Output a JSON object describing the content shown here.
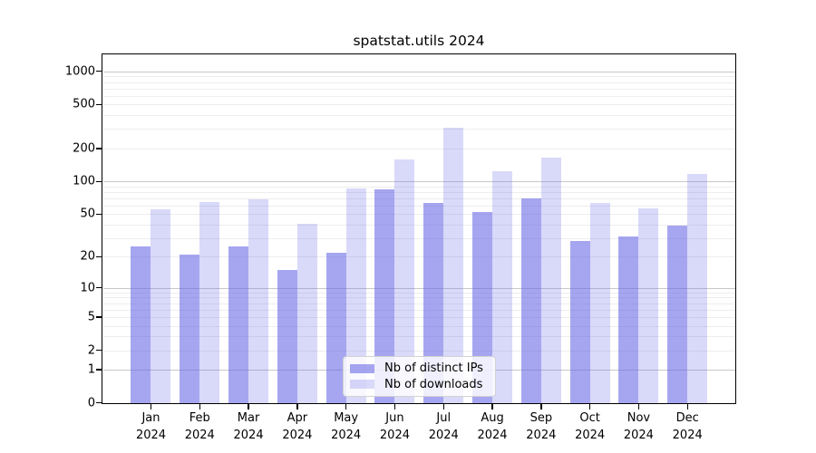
{
  "chart_data": {
    "type": "bar",
    "title": "spatstat.utils 2024",
    "categories": [
      "Jan",
      "Feb",
      "Mar",
      "Apr",
      "May",
      "Jun",
      "Jul",
      "Aug",
      "Sep",
      "Oct",
      "Nov",
      "Dec"
    ],
    "x_year_label": "2024",
    "series": [
      {
        "name": "Nb of distinct IPs",
        "color": "rgba(102,102,230,0.58)",
        "values": [
          25,
          21,
          25,
          15,
          22,
          85,
          63,
          52,
          70,
          28,
          31,
          39
        ]
      },
      {
        "name": "Nb of downloads",
        "color": "rgba(102,102,230,0.25)",
        "values": [
          56,
          65,
          68,
          41,
          86,
          160,
          310,
          124,
          165,
          63,
          57,
          116
        ]
      }
    ],
    "yscale": "log10(1+x)",
    "y_ticks": [
      0,
      1,
      2,
      5,
      10,
      20,
      50,
      100,
      200,
      500,
      1000
    ],
    "y_gridlines_major": [
      1,
      10,
      100,
      1000
    ],
    "ylim": [
      0,
      1460
    ],
    "grid": true,
    "legend_position": "lower center",
    "colors": {
      "grid_major": "#c8c8c8",
      "grid_minor": "#ededed",
      "spine": "#000000",
      "background": "#ffffff"
    }
  }
}
